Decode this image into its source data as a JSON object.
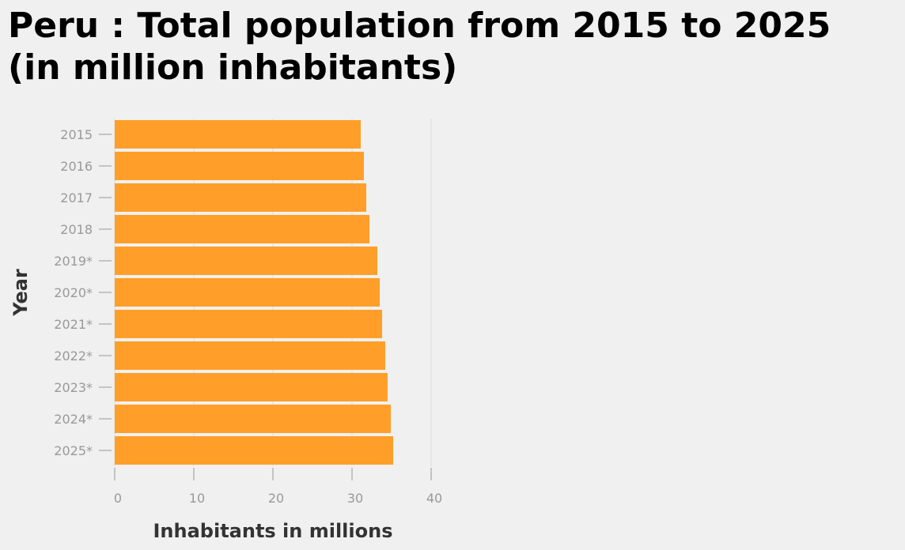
{
  "chart_data": {
    "type": "bar",
    "orientation": "horizontal",
    "title": "Peru : Total population from 2015 to 2025\n(in million inhabitants)",
    "xlabel": "Inhabitants in millions",
    "ylabel": "Year",
    "categories": [
      "2015",
      "2016",
      "2017",
      "2018",
      "2019*",
      "2020*",
      "2021*",
      "2022*",
      "2023*",
      "2024*",
      "2025*"
    ],
    "values": [
      31.1,
      31.5,
      31.8,
      32.2,
      33.2,
      33.5,
      33.8,
      34.2,
      34.5,
      34.9,
      35.2
    ],
    "xlim": [
      0,
      40
    ],
    "xticks": [
      0,
      10,
      20,
      30,
      40
    ],
    "grid": "vertical",
    "bar_color": "#ff9f29",
    "background": "#f0f0f0"
  }
}
